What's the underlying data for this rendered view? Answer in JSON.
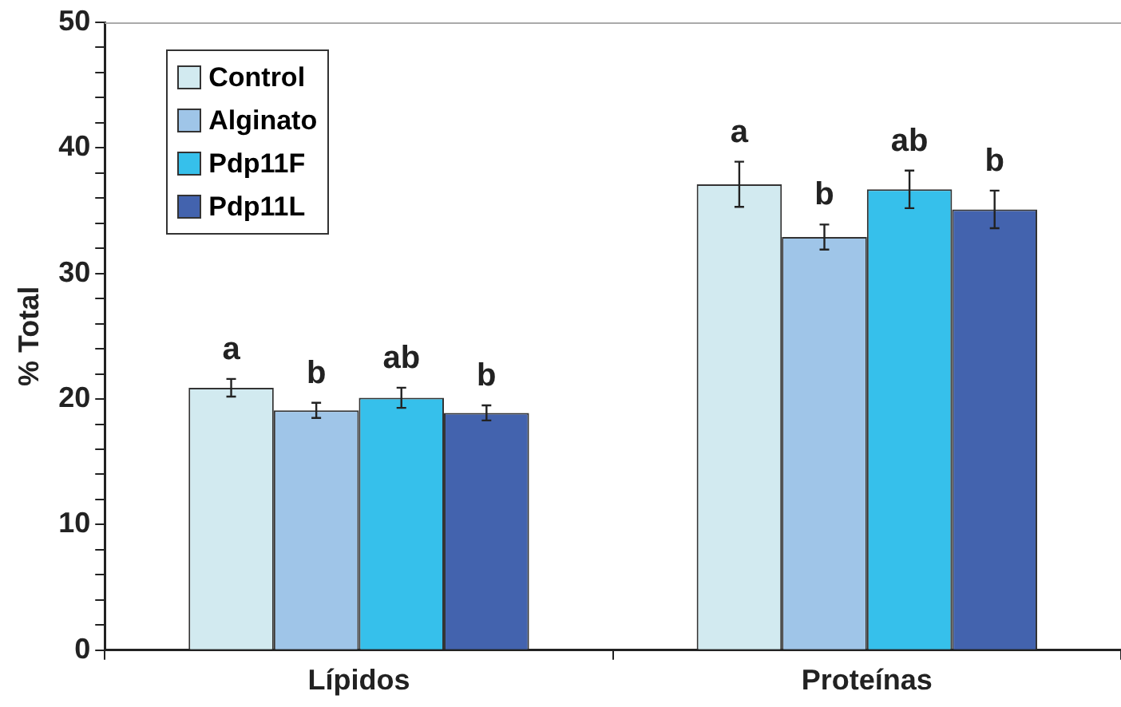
{
  "chart_data": {
    "type": "bar",
    "ylabel": "% Total",
    "categories": [
      "Lípidos",
      "Proteínas"
    ],
    "series": [
      {
        "name": "Control",
        "color": "#d2eaf0",
        "values": [
          20.9,
          37.1
        ],
        "errors": [
          0.7,
          1.8
        ],
        "value_labels": [
          "a",
          "a"
        ]
      },
      {
        "name": "Alginato",
        "color": "#9fc5e8",
        "values": [
          19.1,
          32.9
        ],
        "errors": [
          0.6,
          1.0
        ],
        "value_labels": [
          "b",
          "b"
        ]
      },
      {
        "name": "Pdp11F",
        "color": "#36c0eb",
        "values": [
          20.1,
          36.7
        ],
        "errors": [
          0.8,
          1.5
        ],
        "value_labels": [
          "ab",
          "ab"
        ]
      },
      {
        "name": "Pdp11L",
        "color": "#4363ae",
        "values": [
          18.9,
          35.1
        ],
        "errors": [
          0.6,
          1.5
        ],
        "value_labels": [
          "b",
          "b"
        ]
      }
    ],
    "ylim": [
      0,
      50
    ],
    "yticks": [
      0,
      {
        "value": 2,
        "label": null
      },
      {
        "value": 4,
        "label": null
      },
      {
        "value": 6,
        "label": null
      },
      {
        "value": 8,
        "label": null
      },
      10,
      {
        "value": 12,
        "label": null
      },
      {
        "value": 14,
        "label": null
      },
      {
        "value": 16,
        "label": null
      },
      {
        "value": 18,
        "label": null
      },
      20,
      {
        "value": 22,
        "label": null
      },
      {
        "value": 24,
        "label": null
      },
      {
        "value": 26,
        "label": null
      },
      {
        "value": 28,
        "label": null
      },
      30,
      {
        "value": 32,
        "label": null
      },
      {
        "value": 34,
        "label": null
      },
      {
        "value": 36,
        "label": null
      },
      {
        "value": 38,
        "label": null
      },
      40,
      {
        "value": 42,
        "label": null
      },
      {
        "value": 44,
        "label": null
      },
      {
        "value": 46,
        "label": null
      },
      {
        "value": 48,
        "label": null
      },
      50
    ],
    "grid": false,
    "legend": "top left"
  }
}
